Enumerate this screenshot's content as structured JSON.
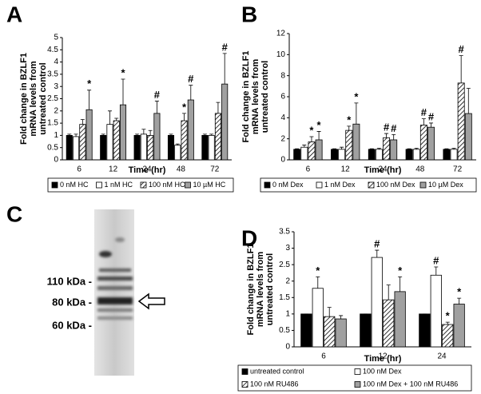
{
  "chart_data": [
    {
      "type": "bar",
      "panel": "A",
      "ylabel": [
        "Fold change in BZLF1",
        "mRNA levels from",
        "untreated control"
      ],
      "xlabel": "Time (hr)",
      "categories": [
        "6",
        "12",
        "24",
        "48",
        "72"
      ],
      "ylim": [
        0,
        5
      ],
      "yticks": [
        0,
        0.5,
        1,
        1.5,
        2,
        2.5,
        3,
        3.5,
        4,
        4.5,
        5
      ],
      "legend": "below",
      "legend_columns": 4,
      "series": [
        {
          "name": "0 nM HC",
          "color": "#000000",
          "values": [
            1,
            1,
            1,
            1,
            1
          ],
          "errors": [
            0.05,
            0.05,
            0.05,
            0.05,
            0.05
          ],
          "significance": [
            null,
            null,
            null,
            null,
            null
          ]
        },
        {
          "name": "1 nM HC",
          "color": "#ffffff",
          "values": [
            0.95,
            1.45,
            1.05,
            0.6,
            1.0
          ],
          "errors": [
            0.1,
            0.55,
            0.2,
            0.05,
            0.05
          ],
          "significance": [
            null,
            null,
            null,
            null,
            null
          ]
        },
        {
          "name": "100 nM HC",
          "color": "#ffffff",
          "pattern": "hatch",
          "values": [
            1.45,
            1.6,
            1.0,
            1.6,
            1.9
          ],
          "errors": [
            0.2,
            0.1,
            0.2,
            0.3,
            0.45
          ],
          "significance": [
            null,
            null,
            null,
            "*",
            null
          ]
        },
        {
          "name": "10 µM HC",
          "color": "#a0a0a0",
          "values": [
            2.05,
            2.25,
            1.9,
            2.45,
            3.1
          ],
          "errors": [
            0.8,
            1.05,
            0.5,
            0.6,
            1.25
          ],
          "significance": [
            "*",
            "*",
            "#",
            "#",
            "#"
          ]
        }
      ]
    },
    {
      "type": "bar",
      "panel": "B",
      "ylabel": [
        "Fold change in BZLF1",
        "mRNA levels from",
        "untreated control"
      ],
      "xlabel": "Time (hr)",
      "categories": [
        "6",
        "12",
        "24",
        "48",
        "72"
      ],
      "ylim": [
        0,
        12
      ],
      "yticks": [
        0,
        2,
        4,
        6,
        8,
        10,
        12
      ],
      "legend": "below",
      "legend_columns": 4,
      "series": [
        {
          "name": "0 nM Dex",
          "color": "#000000",
          "values": [
            1,
            1,
            1,
            1,
            1
          ],
          "errors": [
            0.05,
            0.05,
            0.05,
            0.05,
            0.05
          ],
          "significance": [
            null,
            null,
            null,
            null,
            null
          ]
        },
        {
          "name": "1 nM Dex",
          "color": "#ffffff",
          "values": [
            1.2,
            1.0,
            1.0,
            1.0,
            1.0
          ],
          "errors": [
            0.2,
            0.2,
            0.1,
            0.1,
            0.1
          ],
          "significance": [
            null,
            null,
            null,
            null,
            null
          ]
        },
        {
          "name": "100 nM Dex",
          "color": "#ffffff",
          "pattern": "hatch",
          "values": [
            1.7,
            2.8,
            2.1,
            3.3,
            7.3
          ],
          "errors": [
            0.5,
            0.4,
            0.4,
            0.6,
            2.6
          ],
          "significance": [
            "*",
            "*",
            "#",
            "#",
            "#"
          ]
        },
        {
          "name": "10 µM Dex",
          "color": "#a0a0a0",
          "values": [
            1.9,
            3.4,
            1.9,
            3.1,
            4.4
          ],
          "errors": [
            0.8,
            2.0,
            0.5,
            0.4,
            2.4
          ],
          "significance": [
            "*",
            "*",
            "#",
            "#",
            null
          ]
        }
      ]
    },
    {
      "type": "bar",
      "panel": "D",
      "ylabel": [
        "Fold change in BZLF1",
        "mRNA levels from",
        "untreated control"
      ],
      "xlabel": "Time (hr)",
      "categories": [
        "6",
        "12",
        "24"
      ],
      "ylim": [
        0,
        3.5
      ],
      "yticks": [
        0,
        0.5,
        1,
        1.5,
        2,
        2.5,
        3,
        3.5
      ],
      "legend": "below",
      "legend_columns": 2,
      "series": [
        {
          "name": "untreated control",
          "color": "#000000",
          "values": [
            1,
            1,
            1
          ],
          "errors": [
            0,
            0,
            0
          ],
          "significance": [
            null,
            null,
            null
          ]
        },
        {
          "name": "100 nM Dex",
          "color": "#ffffff",
          "values": [
            1.78,
            2.72,
            2.18
          ],
          "errors": [
            0.35,
            0.22,
            0.25
          ],
          "significance": [
            "*",
            "#",
            "#"
          ]
        },
        {
          "name": "100 nM RU486",
          "color": "#ffffff",
          "pattern": "hatch",
          "values": [
            0.92,
            1.43,
            0.68
          ],
          "errors": [
            0.28,
            0.45,
            0.07
          ],
          "significance": [
            null,
            null,
            "*"
          ]
        },
        {
          "name": "100 nM Dex + 100 nM RU486",
          "color": "#a0a0a0",
          "values": [
            0.85,
            1.68,
            1.3
          ],
          "errors": [
            0.1,
            0.45,
            0.18
          ],
          "significance": [
            null,
            "*",
            "*"
          ]
        }
      ]
    }
  ],
  "blot": {
    "panel": "C",
    "markers": [
      "110 kDa -",
      "80 kDa -",
      "60 kDa -"
    ]
  }
}
